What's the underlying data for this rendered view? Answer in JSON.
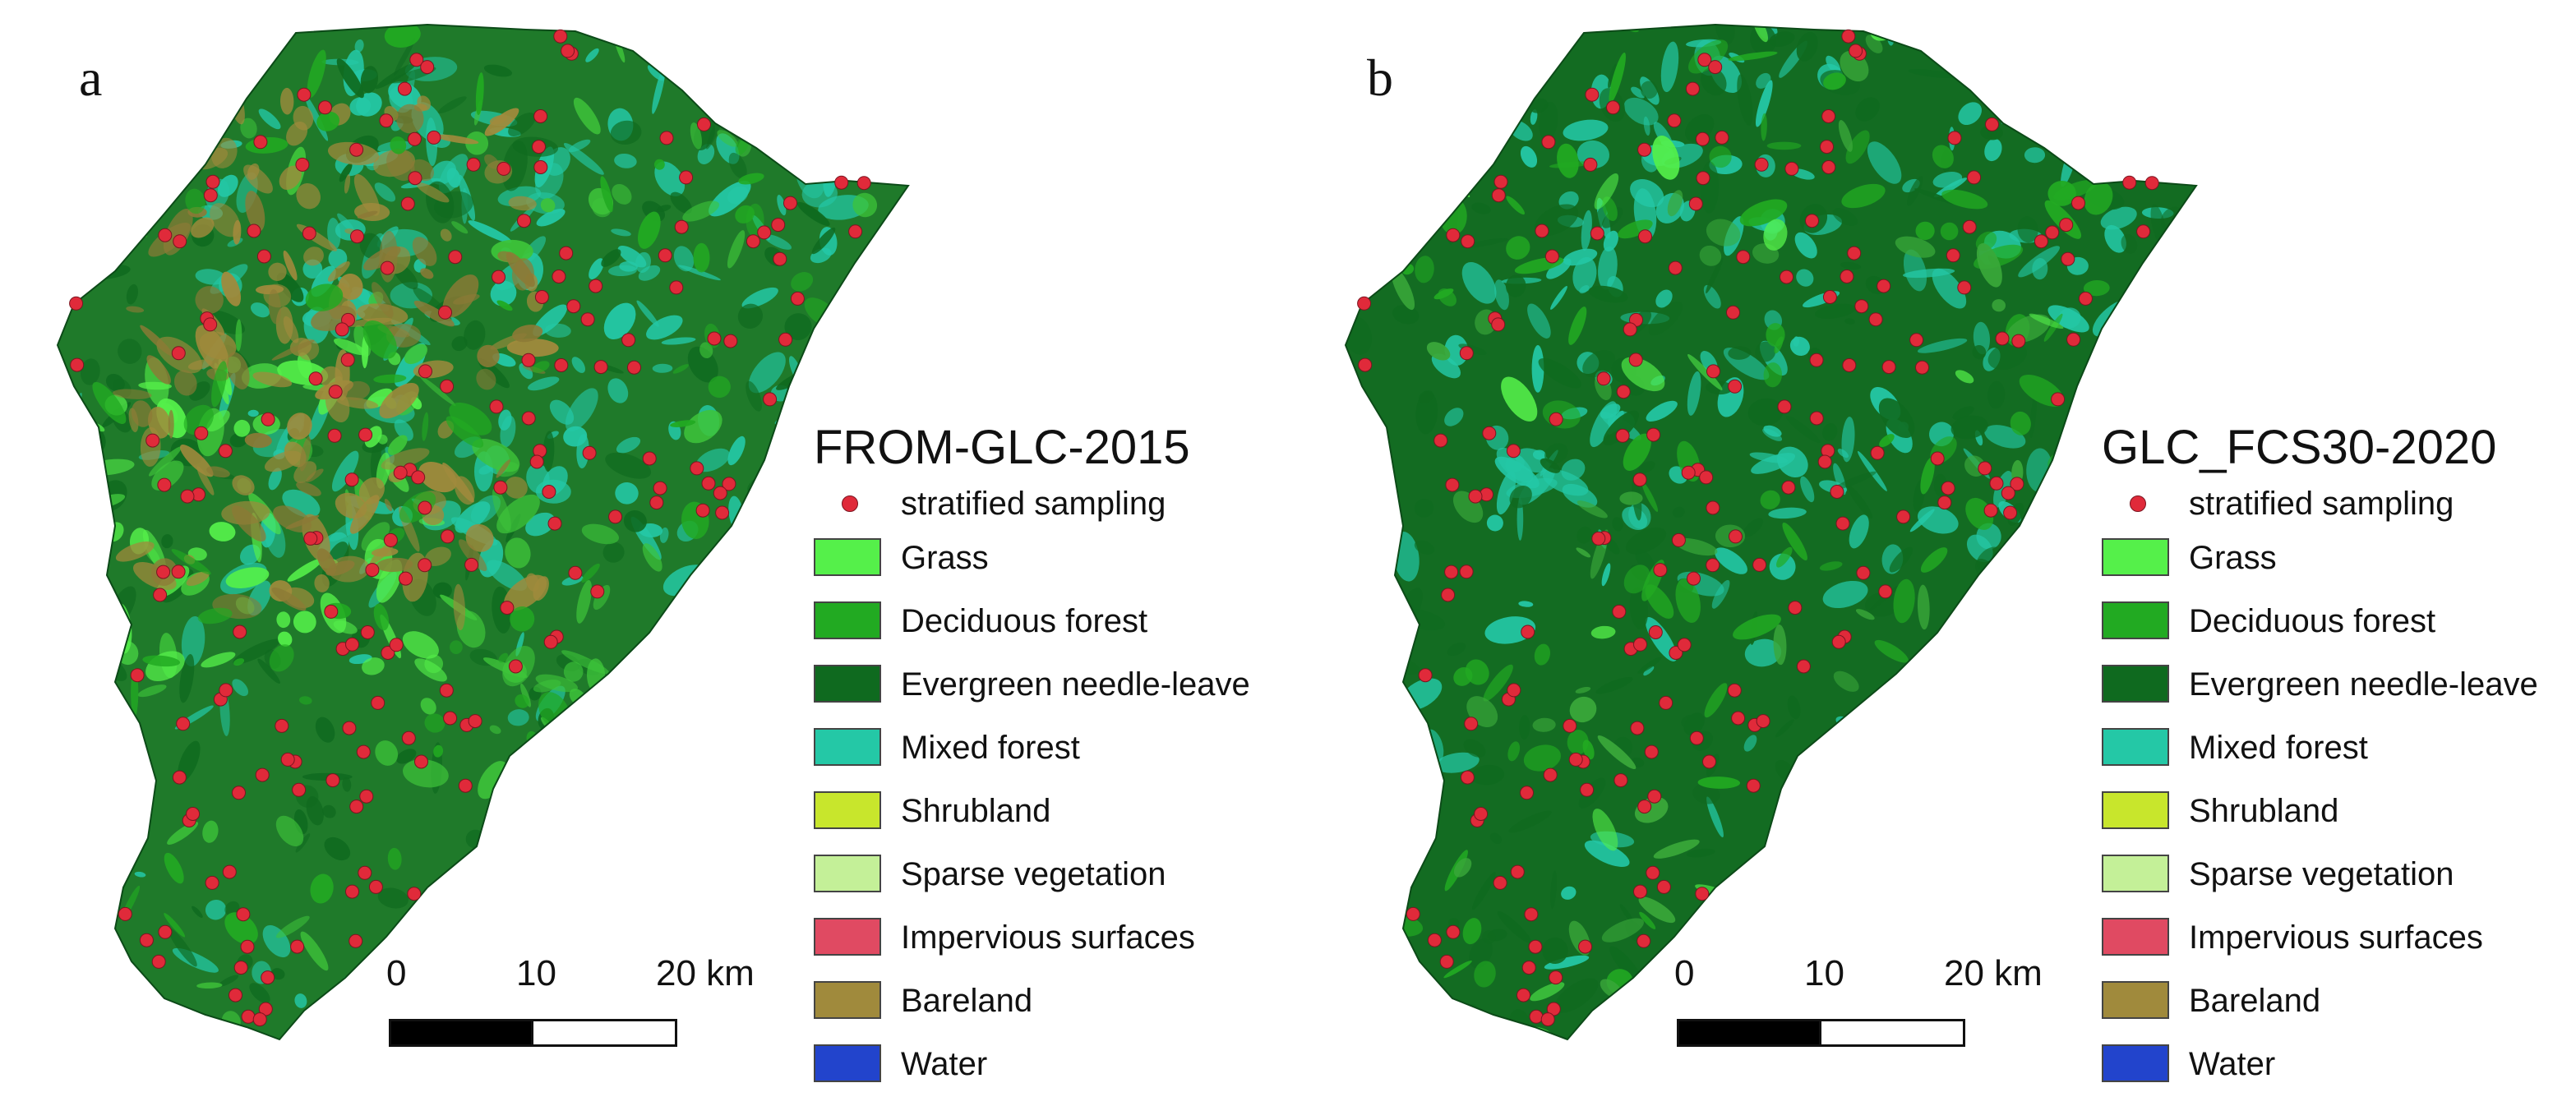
{
  "panels": [
    {
      "letter": "a",
      "title": "FROM-GLC-2015",
      "variant": "a"
    },
    {
      "letter": "b",
      "title": "GLC_FCS30-2020",
      "variant": "b"
    }
  ],
  "legend": {
    "sampling_label": "stratified sampling",
    "sampling_color": "#e02a3a",
    "classes": [
      {
        "label": "Grass",
        "color": "#55f04a"
      },
      {
        "label": "Deciduous forest",
        "color": "#22aa22"
      },
      {
        "label": "Evergreen needle-leave",
        "color": "#0f6a1f"
      },
      {
        "label": "Mixed forest",
        "color": "#24c8a6"
      },
      {
        "label": "Shrubland",
        "color": "#c8e62c"
      },
      {
        "label": "Sparse vegetation",
        "color": "#c4f098"
      },
      {
        "label": "Impervious surfaces",
        "color": "#e04a62"
      },
      {
        "label": "Bareland",
        "color": "#a08a3c"
      },
      {
        "label": "Water",
        "color": "#2244cc"
      }
    ]
  },
  "scalebar": {
    "labels": [
      "0",
      "10",
      "20 km"
    ]
  }
}
